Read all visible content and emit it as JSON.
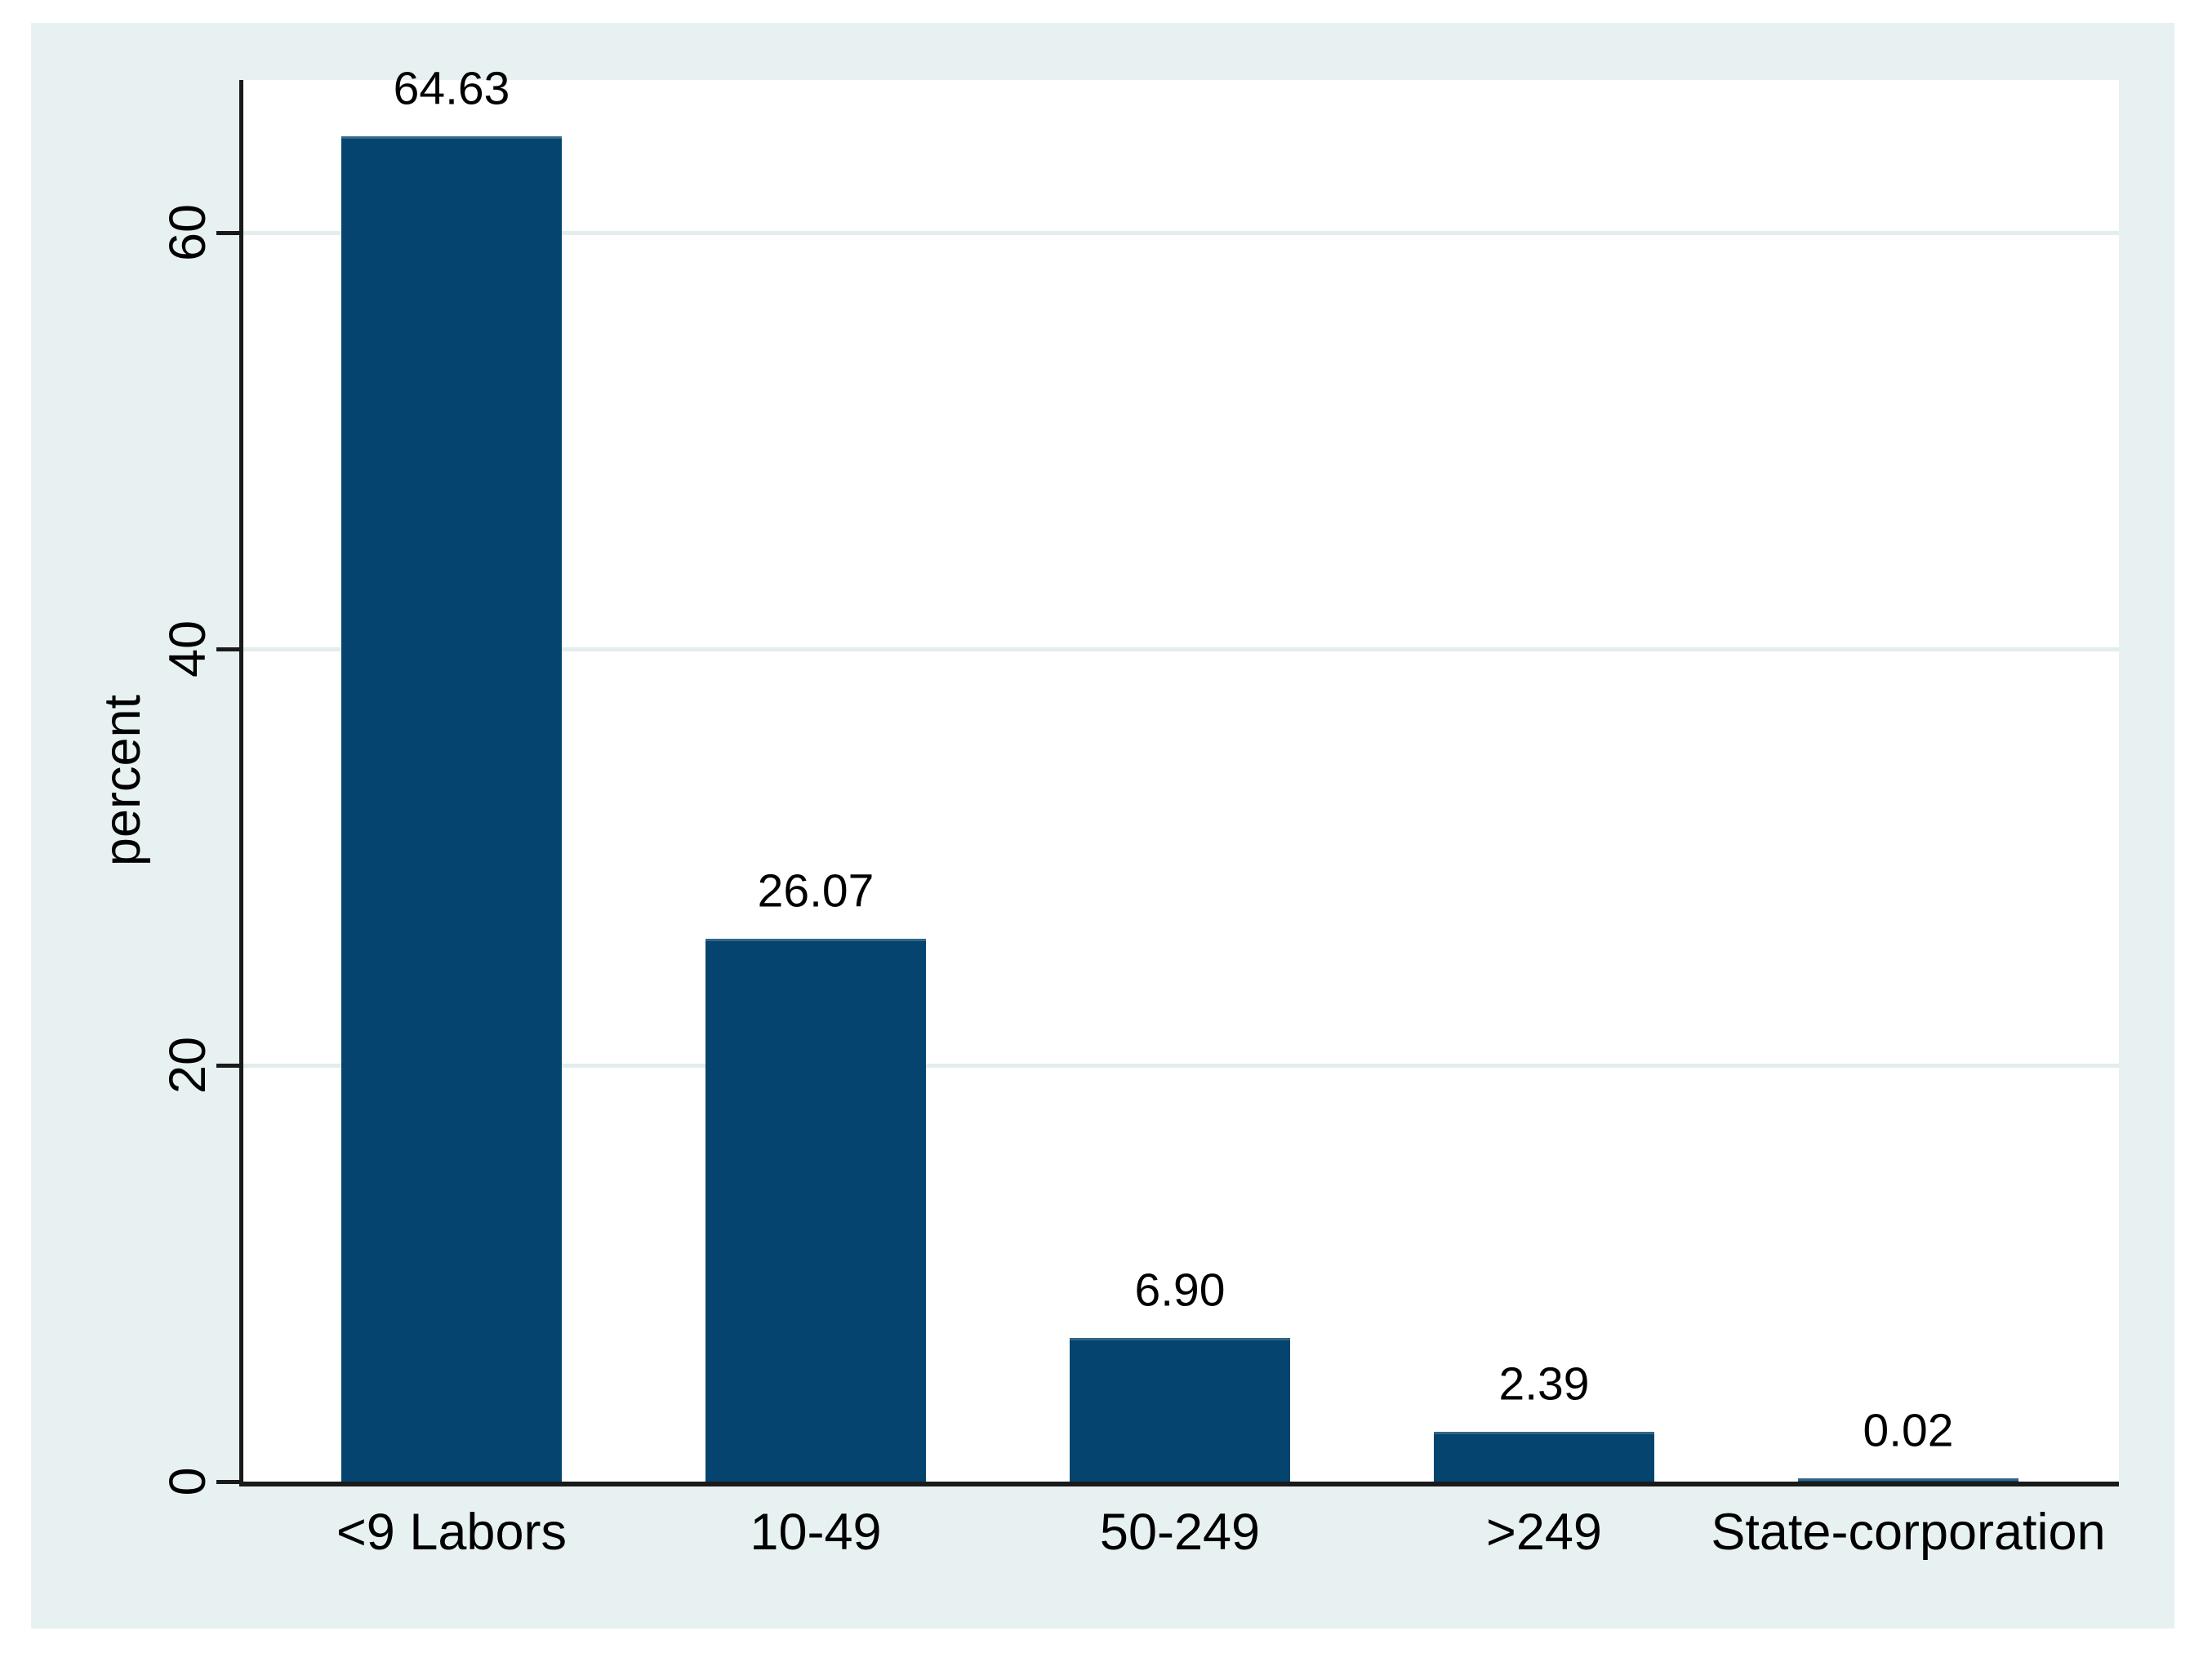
{
  "chart_data": {
    "type": "bar",
    "categories": [
      "<9 Labors",
      "10-49",
      "50-249",
      ">249",
      "State-corporation"
    ],
    "values": [
      64.63,
      26.07,
      6.9,
      2.39,
      0.02
    ],
    "value_labels": [
      "64.63",
      "26.07",
      "6.90",
      "2.39",
      "0.02"
    ],
    "title": "",
    "xlabel": "",
    "ylabel": "percent",
    "yticks": [
      "0",
      "20",
      "40",
      "60"
    ],
    "ylim": [
      0,
      67.3
    ],
    "grid": "horizontal-only",
    "legend_position": "none",
    "colors": {
      "bar_fill": "#04446e",
      "bar_top_edge": "#336688",
      "graph_background": "#e8f1f2",
      "plot_background": "#ffffff",
      "gridline": "#e2edee",
      "axis_line": "#1a1a1a",
      "text": "#000000",
      "page_background": "#ffffff"
    }
  }
}
